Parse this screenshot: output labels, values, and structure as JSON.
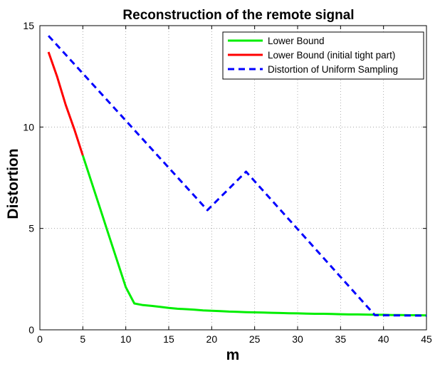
{
  "chart_data": {
    "type": "line",
    "title": "Reconstruction of the remote signal",
    "xlabel": "m",
    "ylabel": "Distortion",
    "xlim": [
      0,
      45
    ],
    "ylim": [
      0,
      15
    ],
    "xticks": [
      0,
      5,
      10,
      15,
      20,
      25,
      30,
      35,
      40,
      45
    ],
    "yticks": [
      0,
      5,
      10,
      15
    ],
    "grid": true,
    "legend_position": "top-right",
    "series": [
      {
        "name": "Lower Bound",
        "color": "#00ee00",
        "style": "solid",
        "x": [
          5,
          6,
          7,
          8,
          9,
          10,
          11,
          12,
          13,
          14,
          15,
          16,
          17,
          18,
          19,
          20,
          21,
          22,
          23,
          24,
          25,
          26,
          27,
          28,
          29,
          30,
          31,
          32,
          33,
          34,
          35,
          36,
          37,
          38,
          39,
          40,
          41,
          42,
          43,
          44,
          45
        ],
        "y": [
          8.6,
          7.3,
          6.0,
          4.7,
          3.4,
          2.1,
          1.3,
          1.22,
          1.18,
          1.13,
          1.08,
          1.04,
          1.02,
          0.99,
          0.96,
          0.94,
          0.92,
          0.9,
          0.89,
          0.87,
          0.86,
          0.85,
          0.84,
          0.83,
          0.82,
          0.81,
          0.8,
          0.79,
          0.79,
          0.78,
          0.77,
          0.76,
          0.76,
          0.75,
          0.74,
          0.74,
          0.73,
          0.73,
          0.72,
          0.72,
          0.71
        ]
      },
      {
        "name": "Lower Bound (initial tight part)",
        "color": "#ff0000",
        "style": "solid",
        "x": [
          1,
          2,
          3,
          4,
          5
        ],
        "y": [
          13.7,
          12.5,
          11.1,
          9.9,
          8.6
        ]
      },
      {
        "name": "Distortion of Uniform Sampling",
        "color": "#0000ff",
        "style": "dashed",
        "x": [
          1,
          19.5,
          24,
          39,
          45
        ],
        "y": [
          14.5,
          5.9,
          7.8,
          0.72,
          0.7
        ]
      }
    ]
  }
}
